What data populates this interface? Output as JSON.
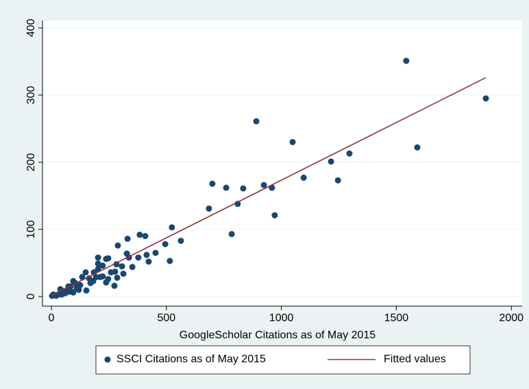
{
  "chart_data": {
    "type": "scatter",
    "xlabel": "GoogleScholar Citations as of May 2015",
    "xlim": [
      -38.7,
      2047
    ],
    "ylim": [
      -14.3,
      411
    ],
    "xticks": [
      0,
      500,
      1000,
      1500,
      2000
    ],
    "yticks": [
      0,
      100,
      200,
      300,
      400
    ],
    "grid": true,
    "series": [
      {
        "name": "SSCI Citations as of May 2015",
        "color": "#1a476f",
        "kind": "scatter",
        "x": [
          1543,
          1889,
          1591,
          891,
          1049,
          1216,
          1296,
          1246,
          1097,
          924,
          959,
          834,
          760,
          700,
          685,
          810,
          971,
          784,
          524,
          563,
          495,
          515,
          453,
          384,
          408,
          414,
          423,
          378,
          331,
          289,
          352,
          328,
          337,
          307,
          274,
          286,
          277,
          283,
          247,
          238,
          247,
          203,
          203,
          203,
          223,
          212,
          223,
          185,
          164,
          149,
          152,
          134,
          104,
          95,
          74,
          66,
          39,
          60,
          30,
          9,
          3,
          21,
          45,
          89,
          110,
          125,
          170,
          182,
          194,
          259,
          313,
          238,
          74,
          54,
          95,
          119,
          83
        ],
        "values": [
          351,
          295,
          222,
          261,
          230,
          201,
          213,
          173,
          177,
          166,
          162,
          161,
          162,
          168,
          131,
          138,
          121,
          93,
          103,
          83,
          78,
          53,
          65,
          92,
          90,
          62,
          52,
          58,
          86,
          76,
          44,
          64,
          58,
          45,
          16,
          28,
          37,
          48,
          57,
          56,
          26,
          58,
          49,
          41,
          46,
          29,
          30,
          36,
          27,
          36,
          9,
          29,
          20,
          23,
          15,
          9,
          11,
          5,
          3,
          3,
          1,
          1,
          3,
          7,
          13,
          17,
          20,
          23,
          29,
          36,
          34,
          21,
          7,
          8,
          6,
          10,
          15
        ]
      },
      {
        "name": "Fitted values",
        "color": "#90353b",
        "kind": "line",
        "x": [
          3,
          1889
        ],
        "values": [
          2,
          326
        ]
      }
    ]
  }
}
